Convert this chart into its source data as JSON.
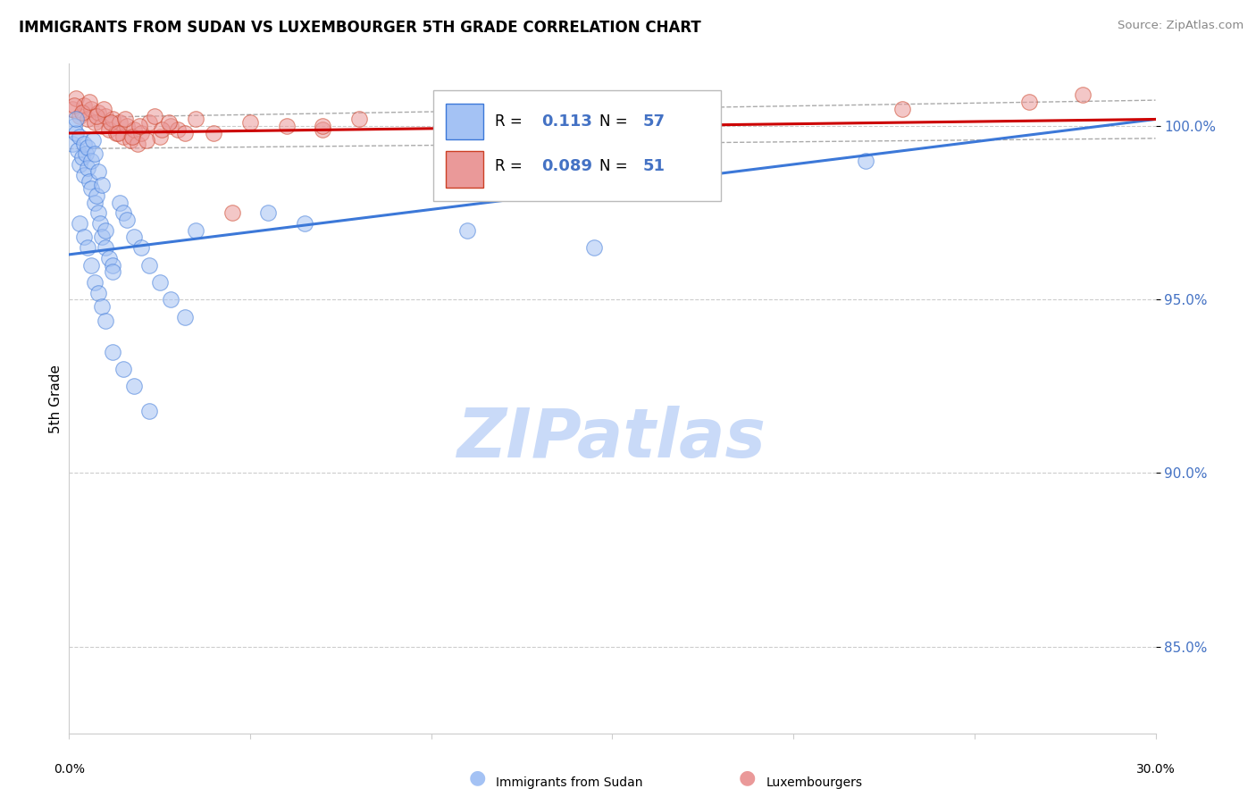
{
  "title": "IMMIGRANTS FROM SUDAN VS LUXEMBOURGER 5TH GRADE CORRELATION CHART",
  "source": "Source: ZipAtlas.com",
  "ylabel": "5th Grade",
  "legend_label_blue": "Immigrants from Sudan",
  "legend_label_pink": "Luxembourgers",
  "R_blue": "0.113",
  "N_blue": "57",
  "R_pink": "0.089",
  "N_pink": "51",
  "blue_fill": "#a4c2f4",
  "pink_fill": "#ea9999",
  "blue_edge": "#3c78d8",
  "pink_edge": "#cc4125",
  "blue_line_color": "#3c78d8",
  "pink_line_color": "#cc0000",
  "dash_color": "#aaaaaa",
  "xmin": 0.0,
  "xmax": 30.0,
  "ymin": 82.5,
  "ymax": 101.8,
  "yticks": [
    85.0,
    90.0,
    95.0,
    100.0
  ],
  "ytick_labels": [
    "85.0%",
    "90.0%",
    "95.0%",
    "100.0%"
  ],
  "blue_line_x0": 0.0,
  "blue_line_y0": 96.3,
  "blue_line_x1": 30.0,
  "blue_line_y1": 100.2,
  "pink_line_x0": 0.0,
  "pink_line_y0": 99.8,
  "pink_line_x1": 30.0,
  "pink_line_y1": 100.2,
  "dash1_y0": 100.25,
  "dash1_y1": 100.75,
  "dash2_y0": 99.35,
  "dash2_y1": 99.65,
  "blue_x": [
    0.1,
    0.15,
    0.2,
    0.2,
    0.25,
    0.3,
    0.3,
    0.35,
    0.4,
    0.4,
    0.45,
    0.5,
    0.5,
    0.55,
    0.6,
    0.6,
    0.65,
    0.7,
    0.7,
    0.75,
    0.8,
    0.8,
    0.85,
    0.9,
    0.9,
    1.0,
    1.0,
    1.1,
    1.2,
    1.2,
    1.4,
    1.5,
    1.6,
    1.8,
    2.0,
    2.2,
    2.5,
    2.8,
    3.2,
    0.3,
    0.4,
    0.5,
    0.6,
    0.7,
    0.8,
    0.9,
    1.0,
    1.2,
    1.5,
    1.8,
    2.2,
    3.5,
    5.5,
    6.5,
    11.0,
    14.5,
    22.0
  ],
  "blue_y": [
    99.5,
    100.0,
    99.8,
    100.2,
    99.3,
    98.9,
    99.7,
    99.1,
    99.5,
    98.6,
    99.2,
    98.8,
    99.4,
    98.4,
    99.0,
    98.2,
    99.6,
    97.8,
    99.2,
    98.0,
    97.5,
    98.7,
    97.2,
    96.8,
    98.3,
    97.0,
    96.5,
    96.2,
    96.0,
    95.8,
    97.8,
    97.5,
    97.3,
    96.8,
    96.5,
    96.0,
    95.5,
    95.0,
    94.5,
    97.2,
    96.8,
    96.5,
    96.0,
    95.5,
    95.2,
    94.8,
    94.4,
    93.5,
    93.0,
    92.5,
    91.8,
    97.0,
    97.5,
    97.2,
    97.0,
    96.5,
    99.0
  ],
  "pink_x": [
    0.1,
    0.2,
    0.3,
    0.4,
    0.5,
    0.6,
    0.7,
    0.8,
    0.9,
    1.0,
    1.1,
    1.2,
    1.3,
    1.4,
    1.5,
    1.6,
    1.7,
    1.8,
    1.9,
    2.0,
    2.2,
    2.5,
    2.8,
    3.0,
    3.5,
    4.0,
    5.0,
    6.0,
    7.0,
    8.0,
    0.15,
    0.35,
    0.55,
    0.75,
    0.95,
    1.15,
    1.35,
    1.55,
    1.75,
    1.95,
    2.15,
    2.35,
    2.55,
    2.75,
    3.2,
    4.5,
    7.0,
    16.5,
    23.0,
    26.5,
    28.0
  ],
  "pink_y": [
    100.5,
    100.8,
    100.3,
    100.6,
    100.2,
    100.5,
    100.1,
    100.4,
    100.0,
    100.3,
    99.9,
    100.2,
    99.8,
    100.1,
    99.7,
    100.0,
    99.6,
    99.9,
    99.5,
    99.8,
    100.1,
    99.7,
    100.0,
    99.9,
    100.2,
    99.8,
    100.1,
    100.0,
    99.9,
    100.2,
    100.6,
    100.4,
    100.7,
    100.3,
    100.5,
    100.1,
    99.8,
    100.2,
    99.7,
    100.0,
    99.6,
    100.3,
    99.9,
    100.1,
    99.8,
    97.5,
    100.0,
    100.3,
    100.5,
    100.7,
    100.9
  ],
  "watermark": "ZIPatlas",
  "watermark_color": "#c9daf8",
  "watermark_fontsize": 55
}
